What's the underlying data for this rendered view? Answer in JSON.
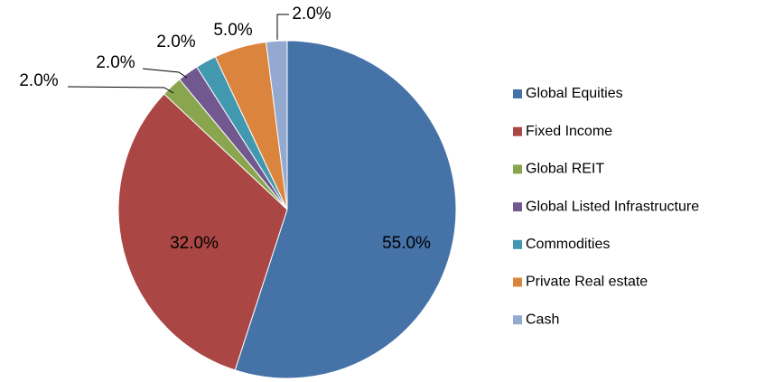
{
  "chart_data": {
    "type": "pie",
    "categories": [
      "Global Equities",
      "Fixed Income",
      "Global REIT",
      "Global Listed Infrastructure",
      "Commodities",
      "Private Real estate",
      "Cash"
    ],
    "values": [
      55,
      32,
      2,
      2,
      2,
      5,
      2
    ],
    "value_labels": [
      "55.0%",
      "32.0%",
      "2.0%",
      "2.0%",
      "2.0%",
      "5.0%",
      "2.0%"
    ],
    "colors": [
      "#4572a7",
      "#aa4643",
      "#89a54e",
      "#71588f",
      "#4198af",
      "#db843d",
      "#93a9cf"
    ],
    "legend": "right"
  }
}
